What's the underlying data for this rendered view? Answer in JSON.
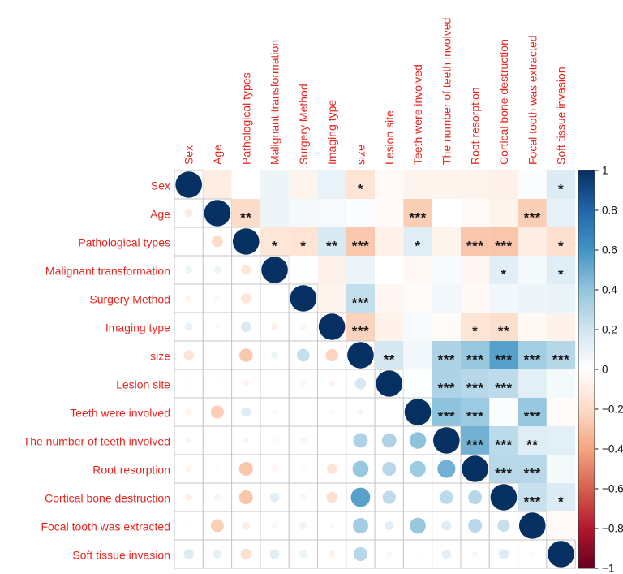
{
  "figure": {
    "background": "#ffffff",
    "label_color": "#e8251f",
    "star_color": "#1a1a1a",
    "grid_color": "#c6c6c6",
    "colorbar_border": "#3a3a3a",
    "tick_text_color": "#111111"
  },
  "chart_data": {
    "type": "heatmap",
    "subtype": "correlation-matrix",
    "title": "",
    "variables": [
      "Sex",
      "Age",
      "Pathological types",
      "Malignant transformation",
      "Surgery Method",
      "Imaging type",
      "size",
      "Lesion site",
      "Teeth were involved",
      "The number of teeth involved",
      "Root resorption",
      "Cortical bone destruction",
      "Focal tooth was extracted",
      "Soft tissue invasion"
    ],
    "diagonal_value": 1,
    "upper_triangle": [
      [
        -0.1,
        0.0,
        0.08,
        -0.06,
        0.1,
        -0.15,
        -0.03,
        -0.06,
        -0.06,
        -0.06,
        -0.08,
        0.02,
        0.15
      ],
      [
        -0.19,
        0.08,
        0.05,
        0.04,
        0.02,
        -0.03,
        -0.25,
        0.0,
        -0.03,
        -0.06,
        -0.25,
        0.11
      ],
      [
        -0.14,
        -0.15,
        0.16,
        -0.27,
        -0.07,
        0.14,
        -0.06,
        -0.28,
        -0.28,
        -0.1,
        -0.17
      ],
      [
        0.01,
        -0.08,
        0.08,
        0.0,
        -0.04,
        0.03,
        -0.05,
        0.13,
        0.05,
        0.14
      ],
      [
        -0.06,
        0.24,
        -0.05,
        -0.02,
        0.06,
        -0.04,
        0.06,
        0.08,
        0.09
      ],
      [
        -0.23,
        -0.07,
        0.04,
        -0.02,
        -0.15,
        -0.18,
        -0.04,
        -0.07
      ],
      [
        0.18,
        0.06,
        0.31,
        0.38,
        0.55,
        0.35,
        0.29
      ],
      [
        0.01,
        0.31,
        0.28,
        0.26,
        0.12,
        0.05
      ],
      [
        0.41,
        0.37,
        0.02,
        0.38,
        -0.02
      ],
      [
        0.48,
        0.27,
        0.14,
        0.12
      ],
      [
        0.28,
        0.28,
        0.05
      ],
      [
        0.23,
        0.15
      ],
      [
        -0.03
      ]
    ],
    "significance": {
      "1,7": "*",
      "1,14": "*",
      "2,3": "**",
      "2,9": "***",
      "2,13": "***",
      "3,4": "*",
      "3,5": "*",
      "3,6": "**",
      "3,7": "***",
      "3,9": "*",
      "3,11": "***",
      "3,12": "***",
      "3,14": "*",
      "4,12": "*",
      "4,14": "*",
      "5,7": "***",
      "6,7": "***",
      "6,11": "*",
      "6,12": "**",
      "7,8": "**",
      "7,10": "***",
      "7,11": "***",
      "7,12": "***",
      "7,13": "***",
      "7,14": "***",
      "8,10": "***",
      "8,11": "***",
      "8,12": "***",
      "9,10": "***",
      "9,11": "***",
      "9,13": "***",
      "10,11": "***",
      "10,12": "***",
      "10,13": "**",
      "11,12": "***",
      "11,13": "***",
      "12,13": "***",
      "12,14": "*"
    },
    "legend": {
      "position": "right",
      "min": -1,
      "max": 1,
      "tick_labels": [
        "1",
        "0.8",
        "0.6",
        "0.4",
        "0.2",
        "0",
        "−0.2",
        "−0.4",
        "−0.6",
        "−0.8",
        "−1"
      ],
      "palette": [
        [
          -1.0,
          "#67001f"
        ],
        [
          -0.8,
          "#b2182b"
        ],
        [
          -0.6,
          "#d6604d"
        ],
        [
          -0.4,
          "#f4a582"
        ],
        [
          -0.2,
          "#fddbc7"
        ],
        [
          0.0,
          "#ffffff"
        ],
        [
          0.2,
          "#d1e5f0"
        ],
        [
          0.4,
          "#92c5de"
        ],
        [
          0.6,
          "#4393c3"
        ],
        [
          0.8,
          "#2166ac"
        ],
        [
          1.0,
          "#053061"
        ]
      ]
    },
    "layout_hints": {
      "lower_triangle": "circles, radius proportional to sqrt(|r|)",
      "upper_triangle": "colored squares with significance stars",
      "diagonal": "dark navy filled circles (r = 1)",
      "grid": "thin gray gridlines on lower triangle and diagonal only",
      "axis_label_color": "red, top labels rotated 90°"
    }
  }
}
